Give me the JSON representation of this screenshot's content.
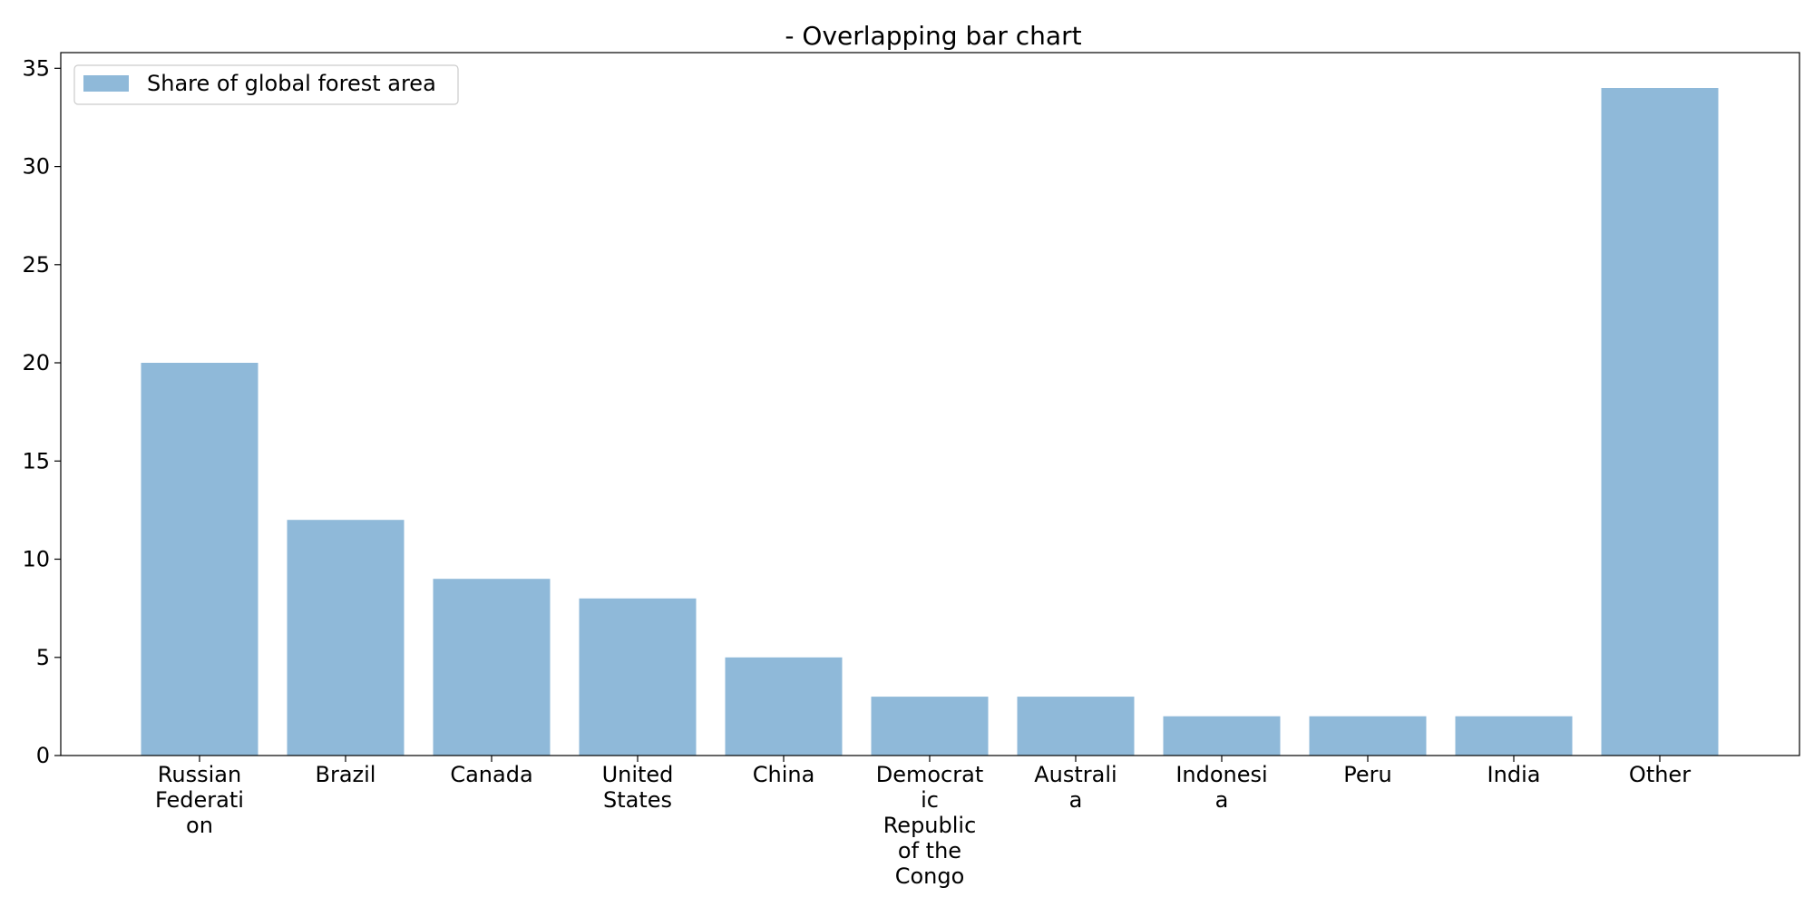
{
  "chart_data": {
    "type": "bar",
    "title": "- Overlapping bar chart",
    "xlabel": "",
    "ylabel": "",
    "categories": [
      [
        "Russian",
        "Federati",
        "on"
      ],
      [
        "Brazil"
      ],
      [
        "Canada"
      ],
      [
        "United",
        "States"
      ],
      [
        "China"
      ],
      [
        "Democrat",
        "ic",
        "Republic",
        "of the",
        "Congo"
      ],
      [
        "Australi",
        "a"
      ],
      [
        "Indonesi",
        "a"
      ],
      [
        "Peru"
      ],
      [
        "India"
      ],
      [
        "Other"
      ]
    ],
    "series": [
      {
        "name": "Share of global forest area",
        "values": [
          20,
          12,
          9,
          8,
          5,
          3,
          3,
          2,
          2,
          2,
          34
        ],
        "color": "#8fb9d9"
      }
    ],
    "yticks": [
      "0",
      "5",
      "10",
      "15",
      "20",
      "25",
      "30",
      "35"
    ],
    "ylim": [
      0,
      35.8
    ],
    "grid": false,
    "legend_position": "top-left"
  }
}
